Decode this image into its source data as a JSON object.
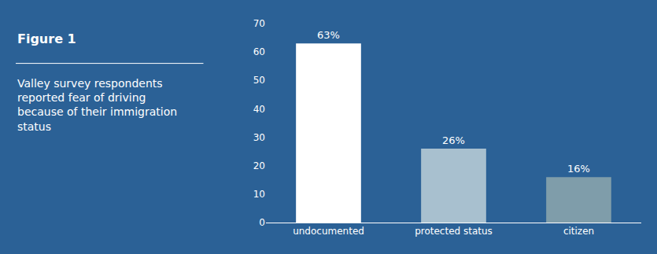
{
  "chart_data": {
    "type": "bar",
    "title": "Figure 1",
    "subtitle": [
      "Valley survey respondents",
      "reported fear of driving",
      "because of their immigration",
      "status"
    ],
    "categories": [
      "undocumented",
      "protected status",
      "citizen"
    ],
    "values": [
      63,
      26,
      16
    ],
    "value_labels": [
      "63%",
      "26%",
      "16%"
    ],
    "data_labels": true,
    "colors": [
      "#ffffff",
      "#a8c0cf",
      "#7f9daa"
    ],
    "ylim": [
      0,
      70
    ],
    "yticks": [
      0,
      10,
      20,
      30,
      40,
      50,
      60,
      70
    ],
    "grid": false
  }
}
